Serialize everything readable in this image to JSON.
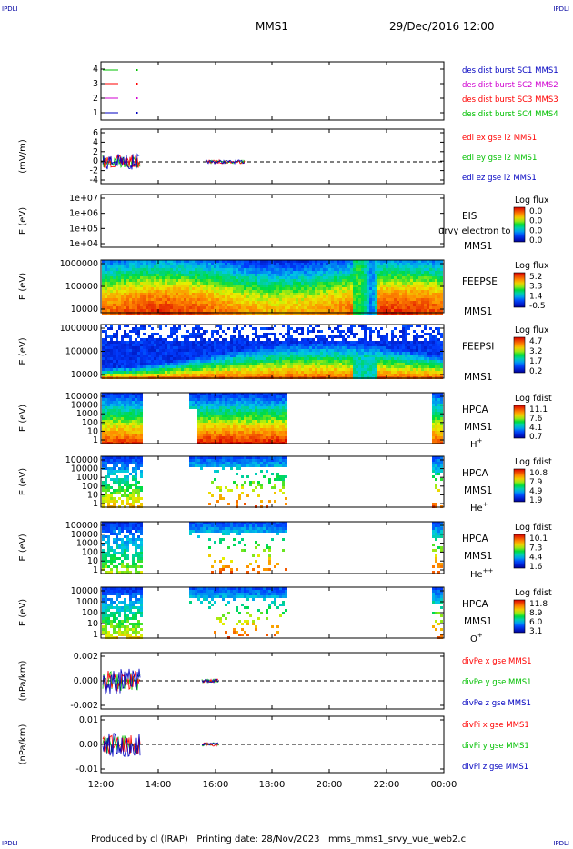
{
  "corner_label": "IPDLI",
  "header": {
    "spacecraft": "MMS1",
    "datetime": "29/Dec/2016 12:00"
  },
  "footer": "Produced by cl (IRAP)   Printing date: 28/Nov/2023   mms_mms1_srvy_vue_web2.cl",
  "colors": {
    "red": "#ff0000",
    "green": "#00c000",
    "magenta": "#d000d0",
    "blue": "#0000c0"
  },
  "chart_data": {
    "type": "heatmap",
    "x_ticks": [
      "12:00",
      "14:00",
      "16:00",
      "18:00",
      "20:00",
      "22:00",
      "00:00"
    ],
    "panels": [
      {
        "id": "burst",
        "ylabel": "",
        "yticks": [
          "4",
          "3",
          "2",
          "1"
        ],
        "legend": [
          {
            "text": "des dist burst SC1 MMS1",
            "color": "blue"
          },
          {
            "text": "des dist burst SC2 MMS2",
            "color": "magenta"
          },
          {
            "text": "des dist burst SC3 MMS3",
            "color": "red"
          },
          {
            "text": "des dist burst SC4 MMS4",
            "color": "green"
          }
        ]
      },
      {
        "id": "edi",
        "ylabel": "(mV/m)",
        "yticks": [
          "6",
          "4",
          "2",
          "0",
          "-2",
          "-4"
        ],
        "legend": [
          {
            "text": "edi ex gse l2 MMS1",
            "color": "red"
          },
          {
            "text": "edi ey gse l2 MMS1",
            "color": "green"
          },
          {
            "text": "edi ez gse l2 MMS1",
            "color": "blue"
          }
        ]
      },
      {
        "id": "eis",
        "ylabel": "E (eV)",
        "yticks": [
          "1e+07",
          "1e+06",
          "1e+05",
          "1e+04"
        ],
        "name": "EIS",
        "name2": "MMS1",
        "overlay": "urvy electron to",
        "cbar_title": "Log flux",
        "cbar_ticks": [
          "0.0",
          "0.0",
          "0.0",
          "0.0"
        ]
      },
      {
        "id": "feepse",
        "ylabel": "E (eV)",
        "yticks": [
          "1000000",
          "100000",
          "10000"
        ],
        "name": "FEEPSE",
        "name2": "MMS1",
        "cbar_title": "Log flux",
        "cbar_ticks": [
          "5.2",
          "3.3",
          "1.4",
          "-0.5"
        ]
      },
      {
        "id": "feepsi",
        "ylabel": "E (eV)",
        "yticks": [
          "1000000",
          "100000",
          "10000"
        ],
        "name": "FEEPSI",
        "name2": "MMS1",
        "cbar_title": "Log flux",
        "cbar_ticks": [
          "4.7",
          "3.2",
          "1.7",
          "0.2"
        ]
      },
      {
        "id": "hpca_h",
        "ylabel": "E (eV)",
        "yticks": [
          "100000",
          "10000",
          "1000",
          "100",
          "10",
          "1"
        ],
        "name": "HPCA",
        "name2": "MMS1",
        "species": "H",
        "charge": "+",
        "cbar_title": "Log fdist",
        "cbar_ticks": [
          "11.1",
          "7.6",
          "4.1",
          "0.7"
        ]
      },
      {
        "id": "hpca_he",
        "ylabel": "E (eV)",
        "yticks": [
          "100000",
          "10000",
          "1000",
          "100",
          "10",
          "1"
        ],
        "name": "HPCA",
        "name2": "MMS1",
        "species": "He",
        "charge": "+",
        "cbar_title": "Log fdist",
        "cbar_ticks": [
          "10.8",
          "7.9",
          "4.9",
          "1.9"
        ]
      },
      {
        "id": "hpca_he2",
        "ylabel": "E (eV)",
        "yticks": [
          "100000",
          "10000",
          "1000",
          "100",
          "10",
          "1"
        ],
        "name": "HPCA",
        "name2": "MMS1",
        "species": "He",
        "charge": "++",
        "cbar_title": "Log fdist",
        "cbar_ticks": [
          "10.1",
          "7.3",
          "4.4",
          "1.6"
        ]
      },
      {
        "id": "hpca_o",
        "ylabel": "E (eV)",
        "yticks": [
          "10000",
          "1000",
          "100",
          "10",
          "1"
        ],
        "name": "HPCA",
        "name2": "MMS1",
        "species": "O",
        "charge": "+",
        "cbar_title": "Log fdist",
        "cbar_ticks": [
          "11.8",
          "8.9",
          "6.0",
          "3.1"
        ]
      },
      {
        "id": "divpe",
        "ylabel": "(nPa/km)",
        "yticks": [
          "0.002",
          "0.000",
          "-0.002"
        ],
        "legend": [
          {
            "text": "divPe x gse MMS1",
            "color": "red"
          },
          {
            "text": "divPe y gse MMS1",
            "color": "green"
          },
          {
            "text": "divPe z gse MMS1",
            "color": "blue"
          }
        ]
      },
      {
        "id": "divpi",
        "ylabel": "(nPa/km)",
        "yticks": [
          "0.01",
          "0.00",
          "-0.01"
        ],
        "legend": [
          {
            "text": "divPi x gse MMS1",
            "color": "red"
          },
          {
            "text": "divPi y gse MMS1",
            "color": "green"
          },
          {
            "text": "divPi z gse MMS1",
            "color": "blue"
          }
        ]
      }
    ]
  }
}
